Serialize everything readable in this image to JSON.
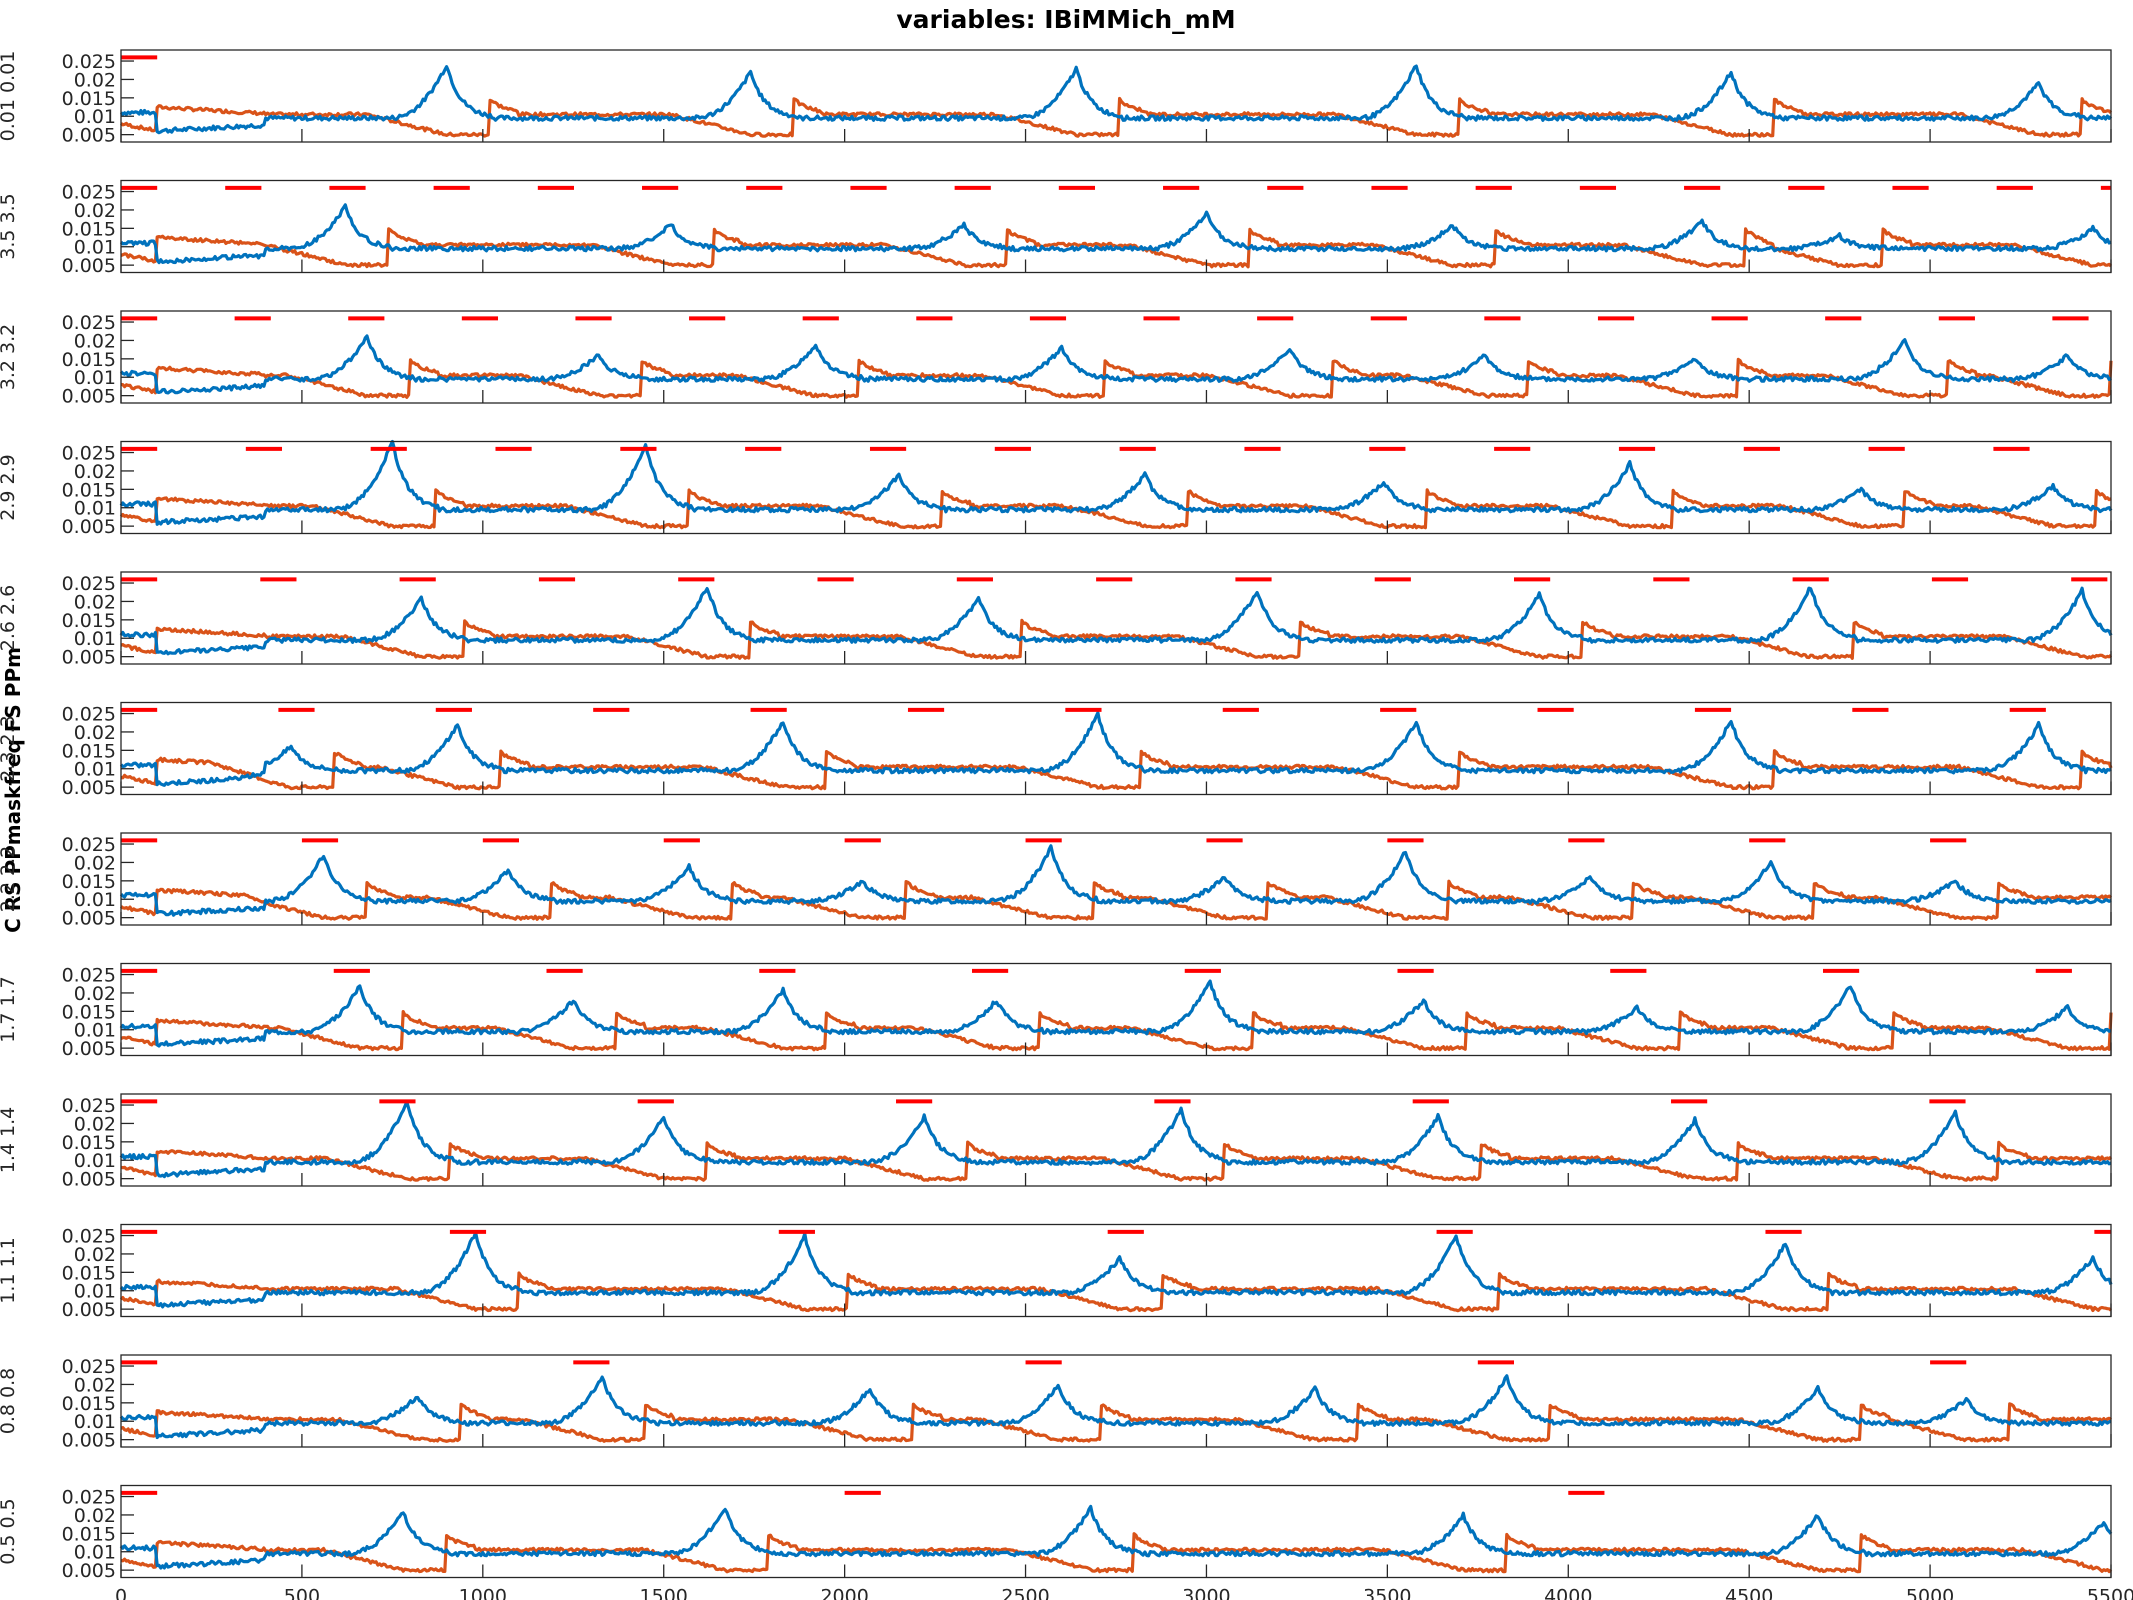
{
  "chart_data": {
    "type": "line",
    "title": "variables: IBiMMich_mM",
    "ylabel": "C RS PPmaskfreq FS PPm",
    "xlim": [
      0,
      5500
    ],
    "ylim": [
      0.003,
      0.028
    ],
    "grid": false,
    "x_ticks": [
      0,
      500,
      1000,
      1500,
      2000,
      2500,
      3000,
      3500,
      4000,
      4500,
      5000,
      5500
    ],
    "x_tick_labels": [
      "0",
      "500",
      "1000",
      "1500",
      "2000",
      "2500",
      "3000",
      "3500",
      "4000",
      "4500",
      "5000",
      "5500"
    ],
    "y_ticks": [
      0.005,
      0.01,
      0.015,
      0.02,
      0.025
    ],
    "y_tick_labels": [
      "0.005",
      "0.01",
      "0.015",
      "0.02",
      "0.025"
    ],
    "series_colors": [
      "#0072BD",
      "#D95319"
    ],
    "stimulus_color": "#FF0000",
    "stimulus_level": 0.026,
    "stimulus_width_ms": 100,
    "rows": [
      {
        "side_label": "0.01 0.01",
        "stim_period": 5500,
        "peaks": [
          900,
          1740,
          2640,
          3580,
          4450,
          5300
        ],
        "peak_heights": [
          0.024,
          0.022,
          0.023,
          0.024,
          0.022,
          0.019
        ]
      },
      {
        "side_label": "3.5 3.5",
        "stim_period": 288,
        "peaks": [
          620,
          1520,
          2330,
          3000,
          3680,
          4370,
          4750,
          5450
        ],
        "peak_heights": [
          0.021,
          0.016,
          0.016,
          0.019,
          0.016,
          0.017,
          0.013,
          0.015
        ]
      },
      {
        "side_label": "3.2 3.2",
        "stim_period": 314,
        "peaks": [
          680,
          1320,
          1920,
          2600,
          3230,
          3770,
          4350,
          4930,
          5380
        ],
        "peak_heights": [
          0.021,
          0.016,
          0.019,
          0.018,
          0.018,
          0.016,
          0.015,
          0.02,
          0.016
        ]
      },
      {
        "side_label": "2.9 2.9",
        "stim_period": 345,
        "peaks": [
          750,
          1450,
          2150,
          2830,
          3490,
          4170,
          4810,
          5340
        ],
        "peak_heights": [
          0.028,
          0.027,
          0.019,
          0.019,
          0.017,
          0.022,
          0.015,
          0.016
        ]
      },
      {
        "side_label": "2.6 2.6",
        "stim_period": 385,
        "peaks": [
          830,
          1620,
          2370,
          3140,
          3920,
          4670,
          5420
        ],
        "peak_heights": [
          0.021,
          0.024,
          0.021,
          0.023,
          0.022,
          0.024,
          0.023
        ]
      },
      {
        "side_label": "2.3 2.3",
        "stim_period": 435,
        "peaks": [
          470,
          930,
          1830,
          2700,
          3580,
          4450,
          5300
        ],
        "peak_heights": [
          0.016,
          0.022,
          0.023,
          0.025,
          0.023,
          0.023,
          0.022
        ]
      },
      {
        "side_label": "2.2 2.2",
        "stim_period": 500,
        "peaks": [
          560,
          1070,
          1570,
          2050,
          2570,
          3050,
          3550,
          4060,
          4560,
          5070
        ],
        "peak_heights": [
          0.022,
          0.018,
          0.019,
          0.015,
          0.024,
          0.016,
          0.023,
          0.016,
          0.02,
          0.015
        ]
      },
      {
        "side_label": "1.7 1.7",
        "stim_period": 588,
        "peaks": [
          660,
          1250,
          1830,
          2420,
          3010,
          3600,
          4190,
          4780,
          5380
        ],
        "peak_heights": [
          0.022,
          0.018,
          0.021,
          0.018,
          0.023,
          0.018,
          0.016,
          0.022,
          0.016
        ]
      },
      {
        "side_label": "1.4 1.4",
        "stim_period": 714,
        "peaks": [
          790,
          1500,
          2220,
          2930,
          3640,
          4350,
          5070
        ],
        "peak_heights": [
          0.026,
          0.022,
          0.022,
          0.024,
          0.022,
          0.021,
          0.023
        ]
      },
      {
        "side_label": "1.1 1.1",
        "stim_period": 909,
        "peaks": [
          980,
          1890,
          2760,
          3690,
          4600,
          5450
        ],
        "peak_heights": [
          0.026,
          0.025,
          0.019,
          0.025,
          0.023,
          0.019
        ]
      },
      {
        "side_label": "0.8 0.8",
        "stim_period": 1250,
        "peaks": [
          820,
          1330,
          2070,
          2590,
          3300,
          3830,
          4690,
          5100
        ],
        "peak_heights": [
          0.017,
          0.022,
          0.019,
          0.02,
          0.019,
          0.022,
          0.019,
          0.016
        ]
      },
      {
        "side_label": "0.5 0.5",
        "stim_period": 2000,
        "peaks": [
          780,
          1670,
          2680,
          3710,
          4690,
          5480
        ],
        "peak_heights": [
          0.021,
          0.022,
          0.022,
          0.02,
          0.02,
          0.018
        ]
      }
    ]
  }
}
